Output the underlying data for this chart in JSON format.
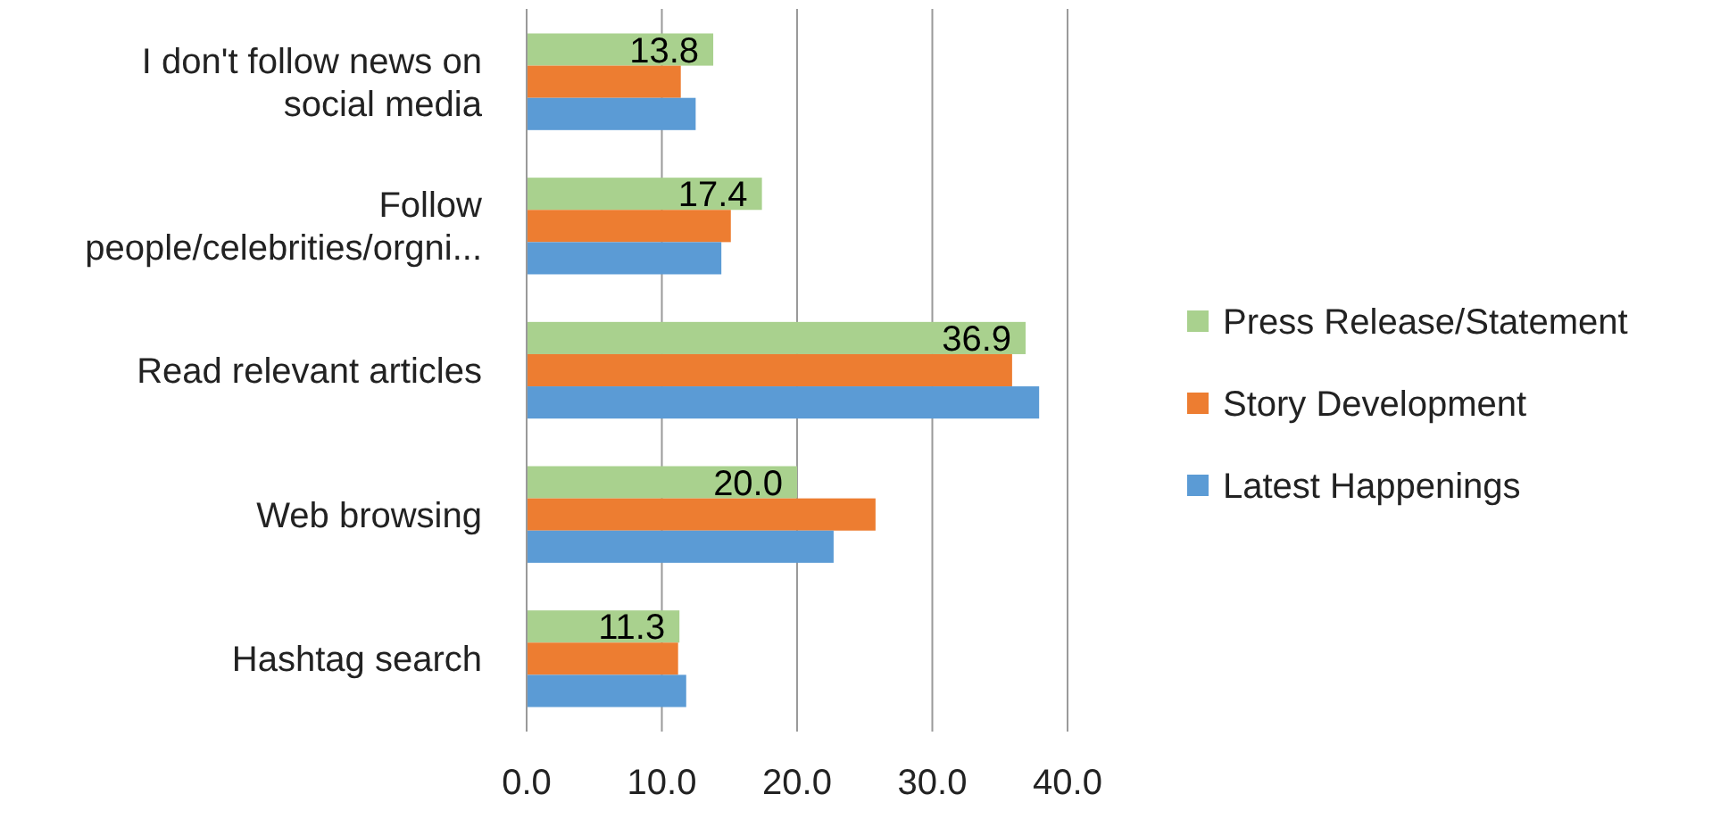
{
  "chart_data": {
    "type": "bar",
    "orientation": "horizontal",
    "categories": [
      "I don't follow news on social media",
      "Follow people/celebrities/orgni...",
      "Read relevant articles",
      "Web browsing",
      "Hashtag search"
    ],
    "series": [
      {
        "name": "Press Release/Statement",
        "color": "#a9d18e",
        "values": [
          13.8,
          17.4,
          36.9,
          20.0,
          11.3
        ],
        "value_labels": [
          "13.8",
          "17.4",
          "36.9",
          "20.0",
          "11.3"
        ]
      },
      {
        "name": "Story Development",
        "color": "#ed7d31",
        "values": [
          11.4,
          15.1,
          35.9,
          25.8,
          11.2
        ]
      },
      {
        "name": "Latest Happenings",
        "color": "#5b9bd5",
        "values": [
          12.5,
          14.4,
          37.9,
          22.7,
          11.8
        ]
      }
    ],
    "xlim": [
      0,
      40
    ],
    "xticks": [
      {
        "value": 0,
        "label": "0.0"
      },
      {
        "value": 10,
        "label": "10.0"
      },
      {
        "value": 20,
        "label": "20.0"
      },
      {
        "value": 30,
        "label": "30.0"
      },
      {
        "value": 40,
        "label": "40.0"
      }
    ],
    "grid": "x",
    "legend": "right"
  }
}
